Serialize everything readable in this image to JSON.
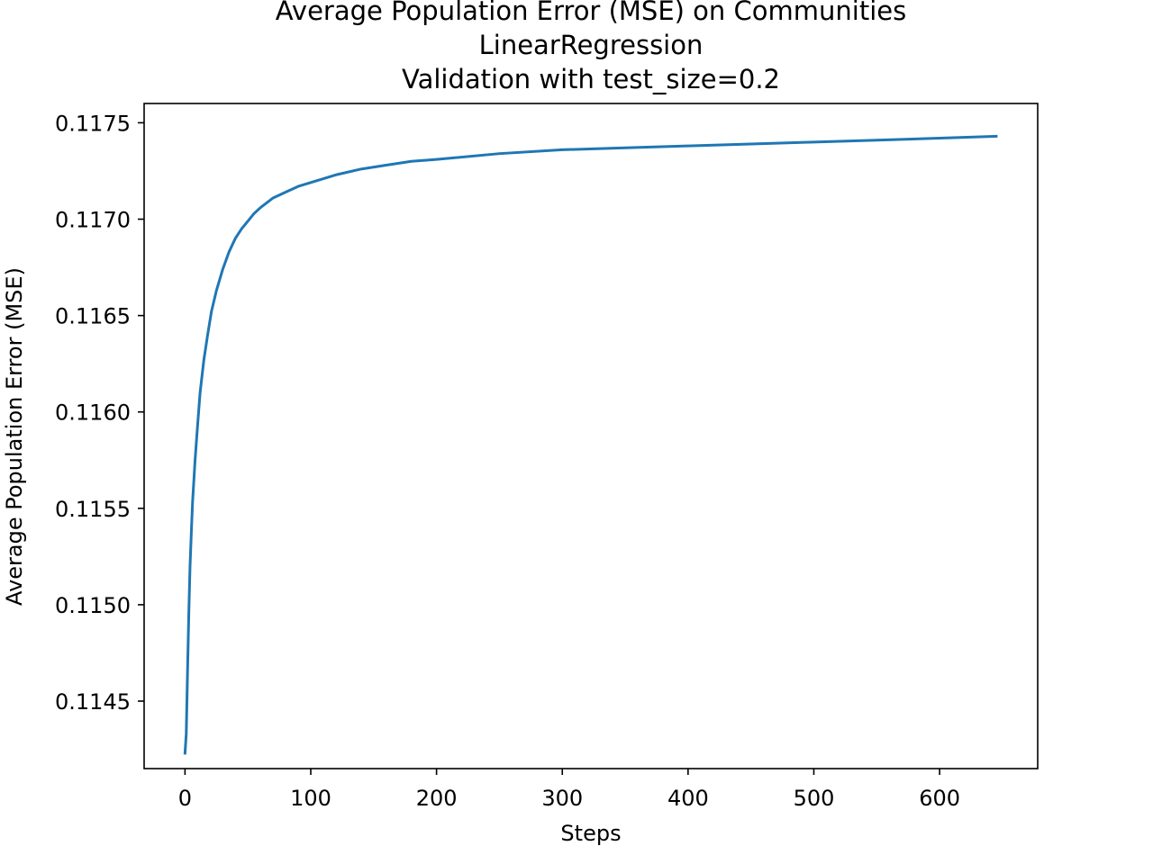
{
  "chart_data": {
    "type": "line",
    "title": [
      "Average Population Error (MSE) on Communities",
      "LinearRegression",
      "Validation with test_size=0.2"
    ],
    "xlabel": "Steps",
    "ylabel": "Average Population Error (MSE)",
    "xlim": [
      -32.5,
      678
    ],
    "ylim": [
      0.11415,
      0.1176
    ],
    "grid": false,
    "legend": "none",
    "xticks": [
      0,
      100,
      200,
      300,
      400,
      500,
      600
    ],
    "xtick_labels": [
      "0",
      "100",
      "200",
      "300",
      "400",
      "500",
      "600"
    ],
    "yticks": [
      0.1145,
      0.115,
      0.1155,
      0.116,
      0.1165,
      0.117,
      0.1175
    ],
    "ytick_labels": [
      "0.1145",
      "0.1150",
      "0.1155",
      "0.1160",
      "0.1165",
      "0.1170",
      "0.1175"
    ],
    "series": [
      {
        "name": "Average Population Error (MSE)",
        "color": "#1f77b4",
        "x": [
          0,
          1,
          2,
          3,
          4,
          5,
          6,
          8,
          10,
          12,
          15,
          18,
          21,
          25,
          30,
          35,
          40,
          45,
          50,
          55,
          60,
          70,
          80,
          90,
          100,
          120,
          140,
          160,
          180,
          200,
          250,
          300,
          350,
          400,
          450,
          500,
          550,
          600,
          645
        ],
        "values": [
          0.11423,
          0.11433,
          0.11465,
          0.11495,
          0.1152,
          0.11537,
          0.11553,
          0.11575,
          0.11593,
          0.1161,
          0.11627,
          0.1164,
          0.11652,
          0.11663,
          0.11674,
          0.11683,
          0.1169,
          0.11695,
          0.11699,
          0.11703,
          0.11706,
          0.11711,
          0.11714,
          0.11717,
          0.11719,
          0.11723,
          0.11726,
          0.11728,
          0.1173,
          0.11731,
          0.11734,
          0.11736,
          0.11737,
          0.11738,
          0.11739,
          0.1174,
          0.11741,
          0.11742,
          0.11743
        ]
      }
    ]
  }
}
